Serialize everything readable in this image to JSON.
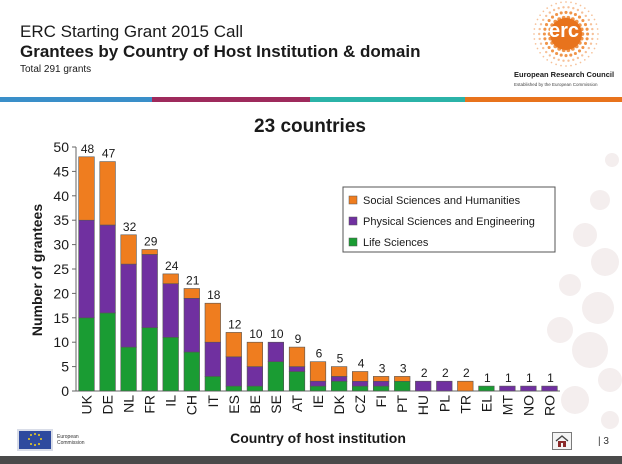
{
  "header": {
    "title_line1": "ERC Starting Grant 2015 Call",
    "title_line2": "Grantees by Country of Host Institution & domain",
    "subtitle": "Total 291 grants"
  },
  "logo": {
    "word": "erc",
    "name": "European Research Council",
    "tagline": "Established by the European Commission",
    "icon": "erc-dots-logo"
  },
  "footer": {
    "ec_label_1": "European",
    "ec_label_2": "Commission",
    "page_number": "| 3",
    "home_icon": "home-icon"
  },
  "colors": {
    "stripe": [
      "#3a8fc9",
      "#9e2a5c",
      "#2bb3a8",
      "#e8731c"
    ],
    "social": "#ef7d1f",
    "physical": "#7030a0",
    "life": "#1a9c33"
  },
  "chart_data": {
    "type": "bar",
    "stacked": true,
    "title": "23 countries",
    "xlabel": "Country of host institution",
    "ylabel": "Number of grantees",
    "ylim": [
      0,
      50
    ],
    "yticks": [
      "0",
      "5",
      "10",
      "15",
      "20",
      "25",
      "30",
      "35",
      "40",
      "45",
      "50"
    ],
    "categories": [
      "UK",
      "DE",
      "NL",
      "FR",
      "IL",
      "CH",
      "IT",
      "ES",
      "BE",
      "SE",
      "AT",
      "IE",
      "DK",
      "CZ",
      "FI",
      "PT",
      "HU",
      "PL",
      "TR",
      "EL",
      "MT",
      "NO",
      "RO"
    ],
    "series": [
      {
        "name": "Life Sciences",
        "values": [
          15,
          16,
          9,
          13,
          11,
          8,
          3,
          1,
          1,
          6,
          4,
          1,
          2,
          1,
          1,
          2,
          0,
          0,
          0,
          1,
          0,
          0,
          0
        ]
      },
      {
        "name": "Physical Sciences and Engineering",
        "values": [
          20,
          18,
          17,
          15,
          11,
          11,
          7,
          6,
          4,
          4,
          1,
          1,
          1,
          1,
          1,
          0,
          2,
          2,
          0,
          0,
          1,
          1,
          1
        ]
      },
      {
        "name": "Social Sciences and Humanities",
        "values": [
          13,
          13,
          6,
          1,
          2,
          2,
          8,
          5,
          5,
          0,
          4,
          4,
          2,
          2,
          1,
          1,
          0,
          0,
          2,
          0,
          0,
          0,
          0
        ]
      }
    ],
    "totals": [
      "48",
      "47",
      "32",
      "29",
      "24",
      "21",
      "18",
      "12",
      "10",
      "10",
      "9",
      "6",
      "5",
      "4",
      "3",
      "3",
      "2",
      "2",
      "2",
      "1",
      "1",
      "1",
      "1"
    ],
    "legend": [
      "Social Sciences and Humanities",
      "Physical Sciences and Engineering",
      "Life Sciences"
    ],
    "legend_position": "top-right"
  }
}
